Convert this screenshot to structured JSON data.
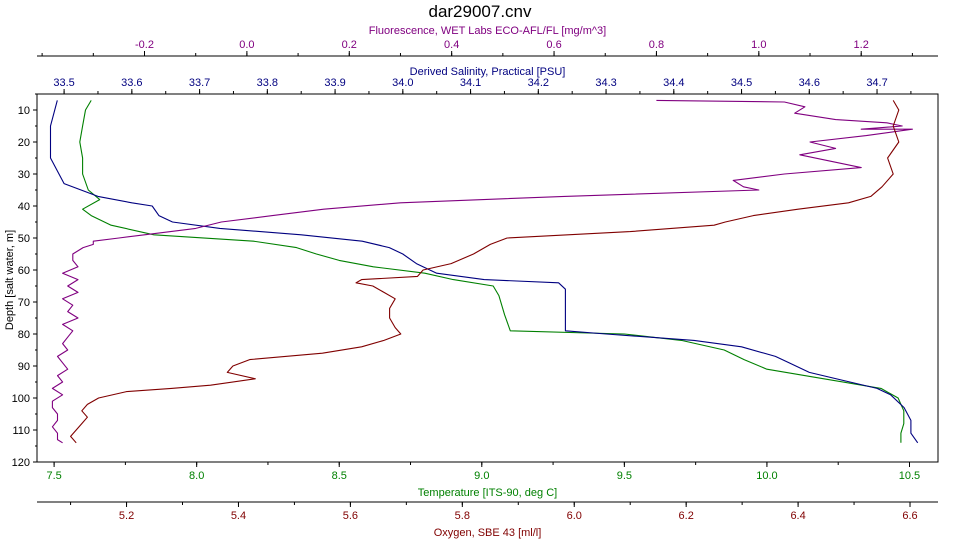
{
  "chart_data": {
    "type": "line",
    "title": "dar29007.cnv",
    "y_axis": {
      "label": "Depth [salt water, m]",
      "range": [
        5,
        120
      ],
      "ticks": [
        10,
        20,
        30,
        40,
        50,
        60,
        70,
        80,
        90,
        100,
        110,
        120
      ],
      "inverted": true,
      "color": "#000000"
    },
    "x_axes": [
      {
        "id": "fluor",
        "label": "Fluorescence, WET Labs ECO-AFL/FL [mg/m^3]",
        "position": "top-outer",
        "range": [
          -0.41,
          1.35
        ],
        "ticks": [
          "-0.2",
          "0.0",
          "0.2",
          "0.4",
          "0.6",
          "0.8",
          "1.0",
          "1.2"
        ],
        "color": "#800080"
      },
      {
        "id": "sal",
        "label": "Derived Salinity, Practical [PSU]",
        "position": "top-inner",
        "range": [
          33.46,
          34.79
        ],
        "ticks": [
          "33.5",
          "33.6",
          "33.7",
          "33.8",
          "33.9",
          "34.0",
          "34.1",
          "34.2",
          "34.3",
          "34.4",
          "34.5",
          "34.6",
          "34.7"
        ],
        "color": "#000080"
      },
      {
        "id": "temp",
        "label": "Temperature [ITS-90, deg C]",
        "position": "bottom-inner",
        "range": [
          7.44,
          10.6
        ],
        "ticks": [
          "7.5",
          "8.0",
          "8.5",
          "9.0",
          "9.5",
          "10.0",
          "10.5"
        ],
        "color": "#008000"
      },
      {
        "id": "oxy",
        "label": "Oxygen, SBE 43 [ml/l]",
        "position": "bottom-outer",
        "range": [
          5.04,
          6.65
        ],
        "ticks": [
          "5.2",
          "5.4",
          "5.6",
          "5.8",
          "6.0",
          "6.2",
          "6.4",
          "6.6"
        ],
        "color": "#800000"
      }
    ],
    "series": [
      {
        "axis": "temp",
        "color": "#008000",
        "points": [
          [
            7.63,
            7
          ],
          [
            7.61,
            10
          ],
          [
            7.6,
            15
          ],
          [
            7.59,
            20
          ],
          [
            7.6,
            25
          ],
          [
            7.6,
            30
          ],
          [
            7.62,
            35
          ],
          [
            7.66,
            38
          ],
          [
            7.6,
            41
          ],
          [
            7.63,
            43
          ],
          [
            7.7,
            46
          ],
          [
            7.85,
            49
          ],
          [
            8.2,
            51
          ],
          [
            8.35,
            53
          ],
          [
            8.42,
            55
          ],
          [
            8.5,
            57
          ],
          [
            8.62,
            59
          ],
          [
            8.8,
            61
          ],
          [
            8.9,
            63
          ],
          [
            9.04,
            65
          ],
          [
            9.06,
            68
          ],
          [
            9.08,
            74
          ],
          [
            9.1,
            79
          ],
          [
            9.5,
            80
          ],
          [
            9.7,
            82
          ],
          [
            9.85,
            85
          ],
          [
            9.92,
            88
          ],
          [
            10.0,
            91
          ],
          [
            10.2,
            94
          ],
          [
            10.4,
            97
          ],
          [
            10.46,
            100
          ],
          [
            10.48,
            104
          ],
          [
            10.48,
            108
          ],
          [
            10.47,
            111
          ],
          [
            10.47,
            114
          ]
        ]
      },
      {
        "axis": "sal",
        "color": "#000080",
        "points": [
          [
            33.49,
            7
          ],
          [
            33.48,
            15
          ],
          [
            33.48,
            25
          ],
          [
            33.5,
            33
          ],
          [
            33.55,
            37
          ],
          [
            33.6,
            39
          ],
          [
            33.63,
            40
          ],
          [
            33.64,
            43
          ],
          [
            33.66,
            45
          ],
          [
            33.73,
            47
          ],
          [
            33.85,
            49
          ],
          [
            33.94,
            51
          ],
          [
            33.98,
            53
          ],
          [
            34.0,
            55
          ],
          [
            34.02,
            58
          ],
          [
            34.05,
            61
          ],
          [
            34.12,
            63
          ],
          [
            34.23,
            64
          ],
          [
            34.24,
            66
          ],
          [
            34.24,
            71
          ],
          [
            34.24,
            79
          ],
          [
            34.3,
            80
          ],
          [
            34.43,
            82
          ],
          [
            34.5,
            84
          ],
          [
            34.55,
            87
          ],
          [
            34.57,
            89
          ],
          [
            34.6,
            92
          ],
          [
            34.66,
            95
          ],
          [
            34.7,
            97
          ],
          [
            34.72,
            99
          ],
          [
            34.74,
            103
          ],
          [
            34.75,
            107
          ],
          [
            34.75,
            111
          ],
          [
            34.76,
            114
          ]
        ]
      },
      {
        "axis": "fluor",
        "color": "#800080",
        "points": [
          [
            0.8,
            7
          ],
          [
            1.05,
            7.5
          ],
          [
            1.09,
            9
          ],
          [
            1.07,
            11
          ],
          [
            1.15,
            13
          ],
          [
            1.25,
            14
          ],
          [
            1.28,
            15
          ],
          [
            1.2,
            16
          ],
          [
            1.3,
            16
          ],
          [
            1.21,
            18
          ],
          [
            1.1,
            20
          ],
          [
            1.15,
            22
          ],
          [
            1.08,
            24
          ],
          [
            1.14,
            26
          ],
          [
            1.2,
            28
          ],
          [
            1.05,
            30
          ],
          [
            0.95,
            32
          ],
          [
            0.97,
            34
          ],
          [
            1.0,
            35
          ],
          [
            0.62,
            37
          ],
          [
            0.3,
            39
          ],
          [
            0.15,
            41
          ],
          [
            0.05,
            43
          ],
          [
            -0.05,
            45
          ],
          [
            -0.1,
            47
          ],
          [
            -0.2,
            49
          ],
          [
            -0.25,
            50
          ],
          [
            -0.3,
            51
          ],
          [
            -0.3,
            52
          ],
          [
            -0.32,
            53
          ],
          [
            -0.34,
            55
          ],
          [
            -0.34,
            57
          ],
          [
            -0.33,
            59
          ],
          [
            -0.36,
            61
          ],
          [
            -0.33,
            63
          ],
          [
            -0.35,
            65
          ],
          [
            -0.33,
            67
          ],
          [
            -0.36,
            69
          ],
          [
            -0.34,
            71
          ],
          [
            -0.35,
            73
          ],
          [
            -0.33,
            75
          ],
          [
            -0.36,
            77
          ],
          [
            -0.34,
            79
          ],
          [
            -0.35,
            81
          ],
          [
            -0.36,
            83
          ],
          [
            -0.35,
            85
          ],
          [
            -0.37,
            87
          ],
          [
            -0.36,
            89
          ],
          [
            -0.35,
            91
          ],
          [
            -0.37,
            93
          ],
          [
            -0.36,
            95
          ],
          [
            -0.38,
            97
          ],
          [
            -0.36,
            99
          ],
          [
            -0.38,
            101
          ],
          [
            -0.38,
            103
          ],
          [
            -0.37,
            105
          ],
          [
            -0.37,
            107
          ],
          [
            -0.38,
            109
          ],
          [
            -0.37,
            111
          ],
          [
            -0.37,
            113
          ],
          [
            -0.36,
            114
          ]
        ]
      },
      {
        "axis": "oxy",
        "color": "#800000",
        "points": [
          [
            6.57,
            7
          ],
          [
            6.58,
            10
          ],
          [
            6.57,
            15
          ],
          [
            6.58,
            20
          ],
          [
            6.56,
            25
          ],
          [
            6.57,
            30
          ],
          [
            6.55,
            34
          ],
          [
            6.53,
            37
          ],
          [
            6.49,
            39
          ],
          [
            6.4,
            41
          ],
          [
            6.32,
            43
          ],
          [
            6.27,
            45
          ],
          [
            6.25,
            46
          ],
          [
            6.1,
            48
          ],
          [
            5.88,
            50
          ],
          [
            5.85,
            52
          ],
          [
            5.82,
            55
          ],
          [
            5.78,
            58
          ],
          [
            5.73,
            60
          ],
          [
            5.72,
            62
          ],
          [
            5.62,
            63
          ],
          [
            5.61,
            64
          ],
          [
            5.64,
            65
          ],
          [
            5.66,
            67
          ],
          [
            5.68,
            69
          ],
          [
            5.67,
            72
          ],
          [
            5.67,
            75
          ],
          [
            5.68,
            78
          ],
          [
            5.69,
            80
          ],
          [
            5.66,
            82
          ],
          [
            5.62,
            84
          ],
          [
            5.55,
            86
          ],
          [
            5.42,
            88
          ],
          [
            5.39,
            90
          ],
          [
            5.38,
            92
          ],
          [
            5.43,
            94
          ],
          [
            5.35,
            96
          ],
          [
            5.28,
            97
          ],
          [
            5.2,
            98
          ],
          [
            5.15,
            100
          ],
          [
            5.13,
            102
          ],
          [
            5.12,
            104
          ],
          [
            5.13,
            106
          ],
          [
            5.12,
            108
          ],
          [
            5.11,
            110
          ],
          [
            5.1,
            112
          ],
          [
            5.11,
            114
          ]
        ]
      }
    ],
    "grid": false,
    "legend": "none"
  }
}
